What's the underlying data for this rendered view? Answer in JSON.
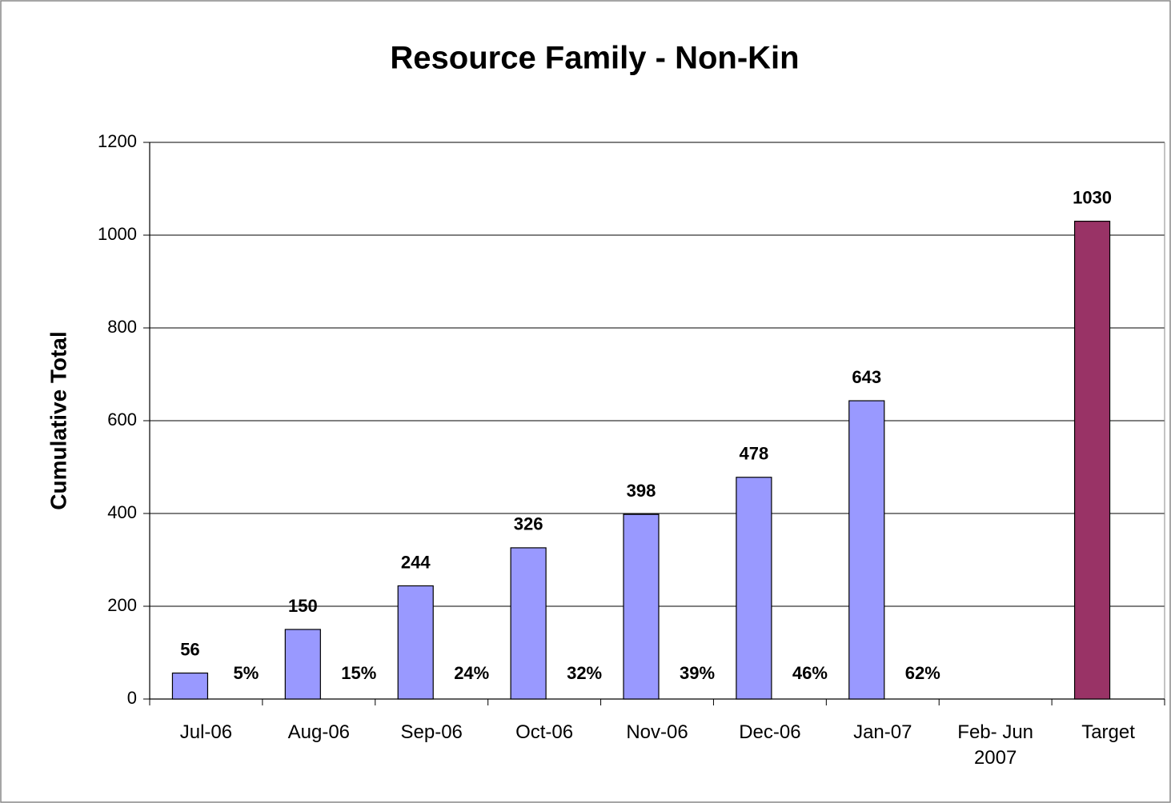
{
  "chart_data": {
    "type": "bar",
    "title": "Resource Family - Non-Kin",
    "y_label": "Cumulative Total",
    "categories": [
      "Jul-06",
      "Aug-06",
      "Sep-06",
      "Oct-06",
      "Nov-06",
      "Dec-06",
      "Jan-07",
      "Feb- Jun 2007",
      "Target"
    ],
    "values": [
      56,
      150,
      244,
      326,
      398,
      478,
      643,
      null,
      1030
    ],
    "colors": [
      "#9999ff",
      "#9999ff",
      "#9999ff",
      "#9999ff",
      "#9999ff",
      "#9999ff",
      "#9999ff",
      "#9999ff",
      "#993366"
    ],
    "percent_values": [
      5,
      15,
      24,
      32,
      39,
      46,
      62,
      null,
      null
    ],
    "percent_labels": [
      "5%",
      "15%",
      "24%",
      "32%",
      "39%",
      "46%",
      "62%",
      null,
      null
    ],
    "ylim": [
      0,
      1200
    ],
    "yticks": [
      0,
      200,
      400,
      600,
      800,
      1000,
      1200
    ],
    "grid": true
  }
}
